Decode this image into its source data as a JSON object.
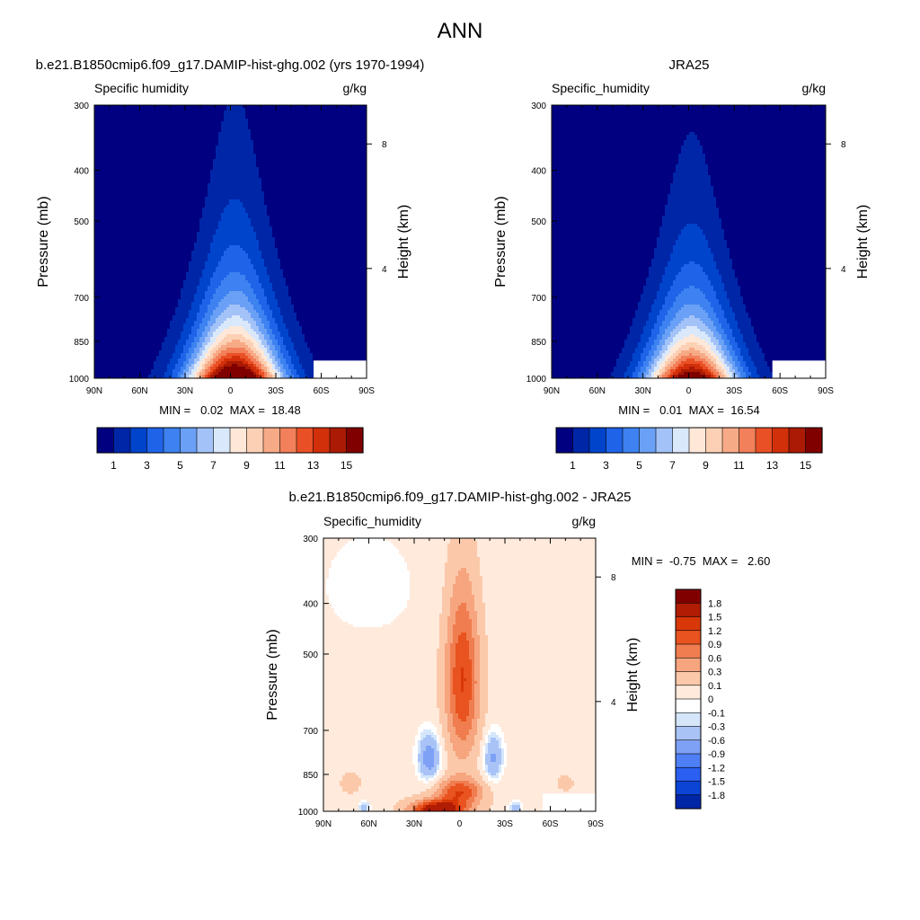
{
  "main_title": "ANN",
  "colors": {
    "seq16": [
      "#000080",
      "#0026a8",
      "#0044cc",
      "#1f63e8",
      "#3d82f0",
      "#6aa0f5",
      "#a3c2f7",
      "#d9e8fb",
      "#ffe8d8",
      "#fcd0b4",
      "#f7aa86",
      "#f2805a",
      "#ea5026",
      "#d2300a",
      "#aa1a04",
      "#800000"
    ],
    "div17": [
      "#000080",
      "#0026a8",
      "#0b45d6",
      "#2a5ff2",
      "#4f7ff5",
      "#7ea0f5",
      "#a9c3f7",
      "#d5e6fb",
      "#ffffff",
      "#ffeadc",
      "#fbc9aa",
      "#f6a57f",
      "#f07d4f",
      "#e8531f",
      "#d83808",
      "#b01d04",
      "#800000"
    ]
  },
  "chart_data": [
    {
      "type": "contour",
      "title": "b.e21.B1850cmip6.f09_g17.DAMIP-hist-ghg.002 (yrs 1970-1994)",
      "left_label": "Specific humidity",
      "right_label": "g/kg",
      "ylabel": "Pressure (mb)",
      "y2label": "Height (km)",
      "xticks": [
        "90N",
        "60N",
        "30N",
        "0",
        "30S",
        "60S",
        "90S"
      ],
      "xlim": [
        90,
        -90
      ],
      "yticks": [
        300,
        400,
        500,
        700,
        850,
        1000
      ],
      "ylim": [
        300,
        1000
      ],
      "y2ticks": [
        {
          "km": 8,
          "label": "8"
        },
        {
          "km": 4,
          "label": "4"
        }
      ],
      "stats": "MIN =   0.02  MAX =  18.48",
      "colorbar_levels": [
        1,
        2,
        3,
        4,
        5,
        6,
        7,
        8,
        9,
        10,
        11,
        12,
        13,
        14,
        15
      ],
      "colorbar_labels": [
        "1",
        "3",
        "5",
        "7",
        "9",
        "11",
        "13",
        "15"
      ],
      "field": {
        "peak": 18.48,
        "peak_lat": -3,
        "width_surface": 26,
        "scale_height_mb": 230,
        "polar_floor": 0.3
      }
    },
    {
      "type": "contour",
      "title": "JRA25",
      "left_label": "Specific_humidity",
      "right_label": "g/kg",
      "ylabel": "Pressure (mb)",
      "y2label": "Height (km)",
      "xticks": [
        "90N",
        "60N",
        "30N",
        "0",
        "30S",
        "60S",
        "90S"
      ],
      "xlim": [
        90,
        -90
      ],
      "yticks": [
        300,
        400,
        500,
        700,
        850,
        1000
      ],
      "ylim": [
        300,
        1000
      ],
      "y2ticks": [
        {
          "km": 8,
          "label": "8"
        },
        {
          "km": 4,
          "label": "4"
        }
      ],
      "stats": "MIN =   0.01  MAX =  16.54",
      "colorbar_levels": [
        1,
        2,
        3,
        4,
        5,
        6,
        7,
        8,
        9,
        10,
        11,
        12,
        13,
        14,
        15
      ],
      "colorbar_labels": [
        "1",
        "3",
        "5",
        "7",
        "9",
        "11",
        "13",
        "15"
      ],
      "field": {
        "peak": 16.54,
        "peak_lat": -2,
        "width_surface": 25,
        "scale_height_mb": 220,
        "polar_floor": 0.25
      }
    },
    {
      "type": "contour",
      "title": "b.e21.B1850cmip6.f09_g17.DAMIP-hist-ghg.002 - JRA25",
      "left_label": "Specific_humidity",
      "right_label": "g/kg",
      "ylabel": "Pressure (mb)",
      "y2label": "Height (km)",
      "xticks": [
        "90N",
        "60N",
        "30N",
        "0",
        "30S",
        "60S",
        "90S"
      ],
      "xlim": [
        90,
        -90
      ],
      "yticks": [
        300,
        400,
        500,
        700,
        850,
        1000
      ],
      "ylim": [
        300,
        1000
      ],
      "y2ticks": [
        {
          "km": 8,
          "label": "8"
        },
        {
          "km": 4,
          "label": "4"
        }
      ],
      "stats": "MIN =  -0.75  MAX =   2.60",
      "colorbar_levels": [
        -1.8,
        -1.5,
        -1.2,
        -0.9,
        -0.6,
        -0.3,
        -0.1,
        0,
        0.1,
        0.3,
        0.6,
        0.9,
        1.2,
        1.5,
        1.8
      ],
      "colorbar_labels": [
        "1.8",
        "1.5",
        "1.2",
        "0.9",
        "0.6",
        "0.3",
        "0.1",
        "0",
        "-0.1",
        "-0.3",
        "-0.6",
        "-0.9",
        "-1.2",
        "-1.5",
        "-1.8"
      ]
    }
  ]
}
